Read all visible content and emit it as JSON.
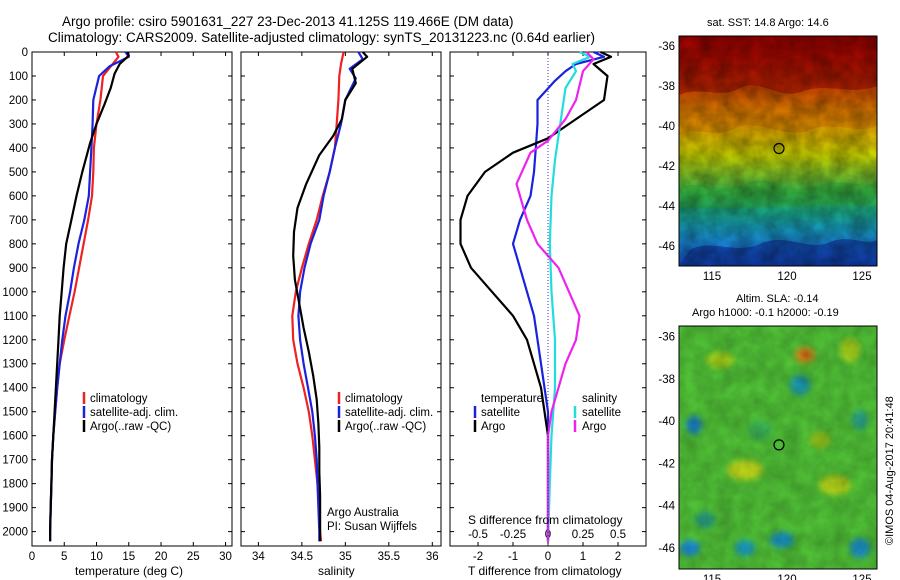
{
  "header": {
    "line1": "Argo profile: csiro 5901631_227 23-Dec-2013 41.125S 119.466E (DM data)",
    "line2": "Climatology: CARS2009. Satellite-adjusted climatology: synTS_20131223.nc (0.64d earlier)"
  },
  "colors": {
    "climatology": "#ee2222",
    "satellite": "#1a22dd",
    "argo": "#000000",
    "satellite_salinity": "#22dddd",
    "argo_salinity": "#ee22ee"
  },
  "chart_data": [
    {
      "id": "temperature",
      "type": "line",
      "xlabel": "temperature (deg C)",
      "xlim": [
        0,
        31
      ],
      "ylim": [
        0,
        2060
      ],
      "xticks": [
        "0",
        "5",
        "10",
        "15",
        "20",
        "25",
        "30"
      ],
      "yticks": [
        "0",
        "100",
        "200",
        "300",
        "400",
        "500",
        "600",
        "700",
        "800",
        "900",
        "1000",
        "1100",
        "1200",
        "1300",
        "1400",
        "1500",
        "1600",
        "1700",
        "1800",
        "1900",
        "2000"
      ],
      "legend": [
        "climatology",
        "satellite-adj. clim.",
        "Argo(..raw -QC)"
      ],
      "series": [
        {
          "name": "climatology",
          "color_key": "climatology",
          "points": [
            [
              13.0,
              0
            ],
            [
              13.4,
              20
            ],
            [
              12.2,
              60
            ],
            [
              11.0,
              100
            ],
            [
              10.6,
              200
            ],
            [
              10.0,
              300
            ],
            [
              9.6,
              400
            ],
            [
              9.5,
              500
            ],
            [
              9.3,
              600
            ],
            [
              8.7,
              700
            ],
            [
              8.0,
              800
            ],
            [
              7.3,
              900
            ],
            [
              6.6,
              1000
            ],
            [
              5.8,
              1100
            ],
            [
              5.0,
              1200
            ],
            [
              4.3,
              1300
            ],
            [
              3.9,
              1400
            ],
            [
              3.6,
              1500
            ],
            [
              3.3,
              1600
            ],
            [
              3.1,
              1700
            ],
            [
              3.0,
              1800
            ],
            [
              2.9,
              1900
            ],
            [
              2.8,
              2000
            ],
            [
              2.8,
              2040
            ]
          ]
        },
        {
          "name": "satellite-adj. clim.",
          "color_key": "satellite",
          "points": [
            [
              14.5,
              0
            ],
            [
              15.0,
              20
            ],
            [
              12.0,
              60
            ],
            [
              10.4,
              100
            ],
            [
              9.5,
              200
            ],
            [
              9.4,
              300
            ],
            [
              9.2,
              400
            ],
            [
              9.0,
              500
            ],
            [
              8.8,
              600
            ],
            [
              8.1,
              700
            ],
            [
              7.2,
              800
            ],
            [
              6.5,
              900
            ],
            [
              5.9,
              1000
            ],
            [
              5.2,
              1100
            ],
            [
              4.7,
              1200
            ],
            [
              4.3,
              1300
            ],
            [
              3.9,
              1400
            ],
            [
              3.6,
              1500
            ],
            [
              3.3,
              1600
            ],
            [
              3.1,
              1700
            ],
            [
              3.0,
              1800
            ],
            [
              2.9,
              1900
            ],
            [
              2.8,
              2000
            ],
            [
              2.8,
              2040
            ]
          ]
        },
        {
          "name": "Argo(..raw -QC)",
          "color_key": "argo",
          "points": [
            [
              14.8,
              0
            ],
            [
              15.0,
              15
            ],
            [
              13.6,
              50
            ],
            [
              12.8,
              90
            ],
            [
              12.2,
              150
            ],
            [
              11.2,
              220
            ],
            [
              10.0,
              300
            ],
            [
              9.0,
              380
            ],
            [
              7.8,
              500
            ],
            [
              6.9,
              600
            ],
            [
              6.1,
              700
            ],
            [
              5.3,
              800
            ],
            [
              4.9,
              900
            ],
            [
              4.6,
              1000
            ],
            [
              4.3,
              1100
            ],
            [
              4.1,
              1200
            ],
            [
              3.9,
              1300
            ],
            [
              3.7,
              1400
            ],
            [
              3.5,
              1500
            ],
            [
              3.3,
              1600
            ],
            [
              3.1,
              1700
            ],
            [
              3.0,
              1800
            ],
            [
              2.9,
              1900
            ],
            [
              2.8,
              2000
            ],
            [
              2.8,
              2040
            ]
          ]
        }
      ]
    },
    {
      "id": "salinity",
      "type": "line",
      "xlabel": "salinity",
      "xlim": [
        33.8,
        36.1
      ],
      "ylim": [
        0,
        2060
      ],
      "xticks": [
        "34",
        "34.5",
        "35",
        "35.5",
        "36"
      ],
      "legend": [
        "climatology",
        "satellite-adj. clim.",
        "Argo(..raw -QC)"
      ],
      "annotation": [
        "Argo Australia",
        "PI: Susan Wijffels"
      ],
      "series": [
        {
          "name": "climatology",
          "color_key": "climatology",
          "points": [
            [
              34.98,
              0
            ],
            [
              34.95,
              50
            ],
            [
              34.93,
              100
            ],
            [
              34.92,
              200
            ],
            [
              34.9,
              300
            ],
            [
              34.88,
              400
            ],
            [
              34.82,
              500
            ],
            [
              34.74,
              600
            ],
            [
              34.67,
              700
            ],
            [
              34.58,
              800
            ],
            [
              34.5,
              900
            ],
            [
              34.43,
              1000
            ],
            [
              34.39,
              1100
            ],
            [
              34.4,
              1200
            ],
            [
              34.45,
              1300
            ],
            [
              34.52,
              1400
            ],
            [
              34.58,
              1500
            ],
            [
              34.62,
              1600
            ],
            [
              34.65,
              1700
            ],
            [
              34.68,
              1800
            ],
            [
              34.7,
              1900
            ],
            [
              34.71,
              2000
            ],
            [
              34.72,
              2040
            ]
          ]
        },
        {
          "name": "satellite-adj. clim.",
          "color_key": "satellite",
          "points": [
            [
              35.15,
              0
            ],
            [
              35.2,
              30
            ],
            [
              35.05,
              70
            ],
            [
              35.12,
              110
            ],
            [
              35.0,
              200
            ],
            [
              34.95,
              300
            ],
            [
              34.88,
              400
            ],
            [
              34.82,
              500
            ],
            [
              34.75,
              600
            ],
            [
              34.7,
              700
            ],
            [
              34.6,
              800
            ],
            [
              34.53,
              900
            ],
            [
              34.48,
              1000
            ],
            [
              34.46,
              1100
            ],
            [
              34.48,
              1200
            ],
            [
              34.52,
              1300
            ],
            [
              34.57,
              1400
            ],
            [
              34.62,
              1500
            ],
            [
              34.65,
              1600
            ],
            [
              34.67,
              1700
            ],
            [
              34.68,
              1800
            ],
            [
              34.69,
              1900
            ],
            [
              34.7,
              2000
            ],
            [
              34.7,
              2040
            ]
          ]
        },
        {
          "name": "Argo(..raw -QC)",
          "color_key": "argo",
          "points": [
            [
              35.2,
              0
            ],
            [
              35.25,
              20
            ],
            [
              35.08,
              70
            ],
            [
              35.12,
              130
            ],
            [
              35.0,
              200
            ],
            [
              34.96,
              280
            ],
            [
              34.86,
              350
            ],
            [
              34.7,
              430
            ],
            [
              34.55,
              550
            ],
            [
              34.45,
              650
            ],
            [
              34.41,
              750
            ],
            [
              34.4,
              850
            ],
            [
              34.42,
              950
            ],
            [
              34.47,
              1050
            ],
            [
              34.52,
              1150
            ],
            [
              34.58,
              1250
            ],
            [
              34.63,
              1350
            ],
            [
              34.67,
              1450
            ],
            [
              34.69,
              1550
            ],
            [
              34.7,
              1650
            ],
            [
              34.7,
              1750
            ],
            [
              34.71,
              1850
            ],
            [
              34.71,
              1950
            ],
            [
              34.71,
              2040
            ]
          ]
        }
      ]
    },
    {
      "id": "differences",
      "type": "line",
      "xlabel": "T difference from climatology",
      "xlabel_top": "S difference from climatology",
      "xlim": [
        -2.8,
        2.8
      ],
      "ylim": [
        0,
        2060
      ],
      "xticks": [
        "-2",
        "-1",
        "0",
        "1",
        "2"
      ],
      "xticks_top": [
        "-0.5",
        "-0.25",
        "0",
        "0.25",
        "0.5"
      ],
      "legend_left_title": "temperature",
      "legend_left": [
        "satellite",
        "Argo"
      ],
      "legend_right_title": "salinity",
      "legend_right": [
        "satellite",
        "Argo"
      ],
      "series": [
        {
          "name": "temperature satellite",
          "color_key": "satellite",
          "points": [
            [
              1.3,
              0
            ],
            [
              1.6,
              20
            ],
            [
              0.8,
              50
            ],
            [
              0.5,
              80
            ],
            [
              0.2,
              120
            ],
            [
              -0.3,
              200
            ],
            [
              -0.3,
              300
            ],
            [
              -0.35,
              400
            ],
            [
              -0.4,
              500
            ],
            [
              -0.5,
              600
            ],
            [
              -0.8,
              700
            ],
            [
              -1.0,
              800
            ],
            [
              -0.8,
              900
            ],
            [
              -0.6,
              1000
            ],
            [
              -0.4,
              1100
            ],
            [
              -0.3,
              1200
            ],
            [
              -0.2,
              1300
            ],
            [
              -0.1,
              1400
            ],
            [
              0,
              1500
            ],
            [
              0,
              1700
            ],
            [
              0,
              2040
            ]
          ]
        },
        {
          "name": "temperature Argo",
          "color_key": "argo",
          "points": [
            [
              1.5,
              0
            ],
            [
              1.8,
              20
            ],
            [
              1.3,
              50
            ],
            [
              1.7,
              100
            ],
            [
              1.6,
              200
            ],
            [
              0.8,
              280
            ],
            [
              0,
              360
            ],
            [
              -1.0,
              420
            ],
            [
              -1.8,
              500
            ],
            [
              -2.3,
              600
            ],
            [
              -2.5,
              700
            ],
            [
              -2.5,
              800
            ],
            [
              -2.2,
              900
            ],
            [
              -1.6,
              1000
            ],
            [
              -1.0,
              1100
            ],
            [
              -0.6,
              1200
            ],
            [
              -0.4,
              1300
            ],
            [
              -0.2,
              1400
            ],
            [
              -0.1,
              1500
            ],
            [
              0,
              1600
            ],
            [
              0,
              2040
            ]
          ]
        },
        {
          "name": "salinity satellite",
          "color_key": "satellite_salinity",
          "points": [
            [
              0.9,
              0
            ],
            [
              1.2,
              20
            ],
            [
              0.7,
              50
            ],
            [
              0.8,
              80
            ],
            [
              0.5,
              150
            ],
            [
              0.4,
              250
            ],
            [
              0.3,
              350
            ],
            [
              0.2,
              450
            ],
            [
              0.1,
              600
            ],
            [
              0.05,
              800
            ],
            [
              0.1,
              1000
            ],
            [
              0.2,
              1200
            ],
            [
              0.2,
              1400
            ],
            [
              0.1,
              1600
            ],
            [
              0.05,
              1800
            ],
            [
              0,
              2040
            ]
          ]
        },
        {
          "name": "salinity Argo",
          "color_key": "argo_salinity",
          "points": [
            [
              1.1,
              0
            ],
            [
              1.3,
              30
            ],
            [
              1.0,
              80
            ],
            [
              0.8,
              200
            ],
            [
              0.5,
              280
            ],
            [
              0.0,
              370
            ],
            [
              -0.5,
              420
            ],
            [
              -0.9,
              550
            ],
            [
              -0.6,
              700
            ],
            [
              -0.3,
              800
            ],
            [
              0.3,
              900
            ],
            [
              0.6,
              1000
            ],
            [
              0.9,
              1100
            ],
            [
              0.8,
              1200
            ],
            [
              0.5,
              1300
            ],
            [
              0.3,
              1400
            ],
            [
              0.1,
              1500
            ],
            [
              0,
              1600
            ],
            [
              0,
              2040
            ]
          ]
        }
      ]
    },
    {
      "id": "sst_map",
      "type": "heatmap",
      "title": "sat. SST: 14.8 Argo: 14.6",
      "xlim": [
        112.8,
        126.0
      ],
      "ylim": [
        -47.0,
        -35.5
      ],
      "xticks": [
        "115",
        "120",
        "125"
      ],
      "yticks": [
        "-36",
        "-38",
        "-40",
        "-42",
        "-44",
        "-46"
      ],
      "marker": {
        "lon": 119.466,
        "lat": -41.125
      }
    },
    {
      "id": "sla_map",
      "type": "heatmap",
      "title_line1": "Altim. SLA: -0.14",
      "title_line2": "Argo h1000: -0.1 h2000: -0.19",
      "xlim": [
        112.8,
        126.0
      ],
      "ylim": [
        -47.0,
        -35.5
      ],
      "xticks": [
        "115",
        "120",
        "125"
      ],
      "yticks": [
        "-36",
        "-38",
        "-40",
        "-42",
        "-44",
        "-46"
      ],
      "marker": {
        "lon": 119.466,
        "lat": -41.125
      }
    }
  ],
  "footer": {
    "credit": "©IMOS 04-Aug-2017 20:41:48"
  }
}
